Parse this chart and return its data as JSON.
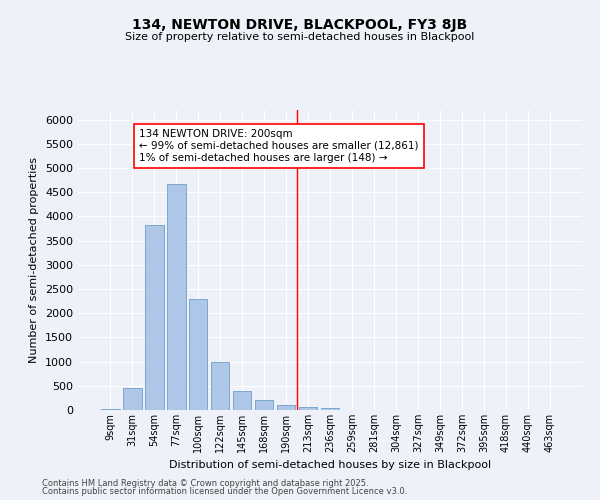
{
  "title1": "134, NEWTON DRIVE, BLACKPOOL, FY3 8JB",
  "title2": "Size of property relative to semi-detached houses in Blackpool",
  "xlabel": "Distribution of semi-detached houses by size in Blackpool",
  "ylabel": "Number of semi-detached properties",
  "categories": [
    "9sqm",
    "31sqm",
    "54sqm",
    "77sqm",
    "100sqm",
    "122sqm",
    "145sqm",
    "168sqm",
    "190sqm",
    "213sqm",
    "236sqm",
    "259sqm",
    "281sqm",
    "304sqm",
    "327sqm",
    "349sqm",
    "372sqm",
    "395sqm",
    "418sqm",
    "440sqm",
    "463sqm"
  ],
  "values": [
    30,
    460,
    3820,
    4680,
    2300,
    1000,
    400,
    200,
    100,
    60,
    40,
    0,
    0,
    0,
    0,
    0,
    0,
    0,
    0,
    0,
    0
  ],
  "bar_color": "#aec6e8",
  "bar_edge_color": "#6fa0c8",
  "vline_x_index": 8.5,
  "vline_color": "red",
  "annotation_text": "134 NEWTON DRIVE: 200sqm\n← 99% of semi-detached houses are smaller (12,861)\n1% of semi-detached houses are larger (148) →",
  "annotation_box_color": "white",
  "annotation_box_edge": "red",
  "ylim": [
    0,
    6200
  ],
  "yticks": [
    0,
    500,
    1000,
    1500,
    2000,
    2500,
    3000,
    3500,
    4000,
    4500,
    5000,
    5500,
    6000
  ],
  "footer1": "Contains HM Land Registry data © Crown copyright and database right 2025.",
  "footer2": "Contains public sector information licensed under the Open Government Licence v3.0.",
  "bg_color": "#eef2f8",
  "grid_color": "white",
  "title1_fontsize": 10,
  "title2_fontsize": 8,
  "ylabel_fontsize": 8,
  "xlabel_fontsize": 8,
  "ytick_fontsize": 8,
  "xtick_fontsize": 7,
  "annotation_fontsize": 7.5,
  "footer_fontsize": 6
}
